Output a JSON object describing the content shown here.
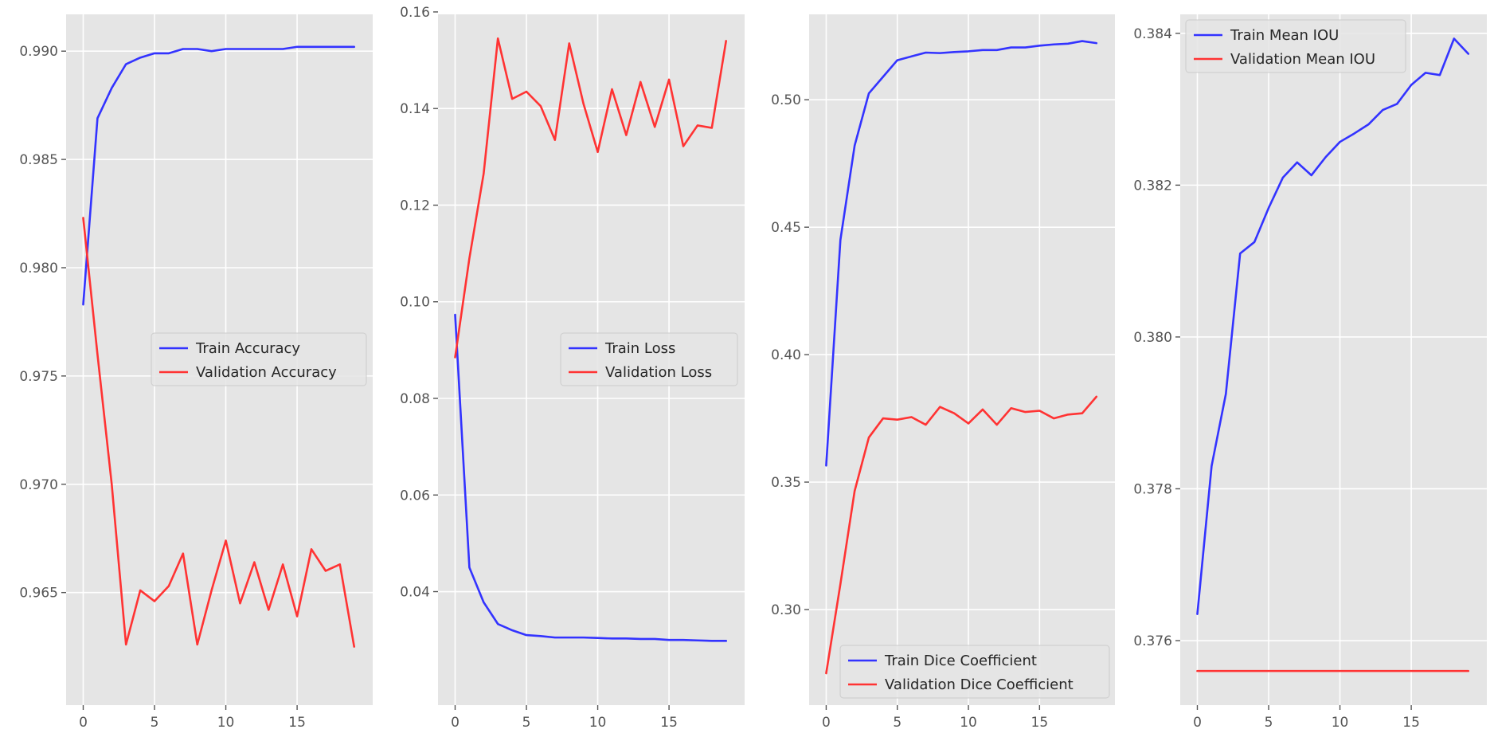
{
  "chart_data": [
    {
      "type": "line",
      "title": "",
      "xlabel": "",
      "ylabel": "",
      "x": [
        0,
        1,
        2,
        3,
        4,
        5,
        6,
        7,
        8,
        9,
        10,
        11,
        12,
        13,
        14,
        15,
        16,
        17,
        18,
        19
      ],
      "xlim": [
        -1.2,
        20.3
      ],
      "ylim": [
        0.9598,
        0.9917
      ],
      "xticks": [
        0,
        5,
        10,
        15
      ],
      "yticks": [
        0.965,
        0.97,
        0.975,
        0.98,
        0.985,
        0.99
      ],
      "ytick_labels": [
        "0.965",
        "0.970",
        "0.975",
        "0.980",
        "0.985",
        "0.990"
      ],
      "grid": true,
      "legend_position": "center-right",
      "series": [
        {
          "name": "Train Accuracy",
          "color": "#3333ff",
          "values": [
            0.9783,
            0.9869,
            0.9883,
            0.9894,
            0.9897,
            0.9899,
            0.9899,
            0.9901,
            0.9901,
            0.99,
            0.9901,
            0.9901,
            0.9901,
            0.9901,
            0.9901,
            0.9902,
            0.9902,
            0.9902,
            0.9902,
            0.9902
          ]
        },
        {
          "name": "Validation Accuracy",
          "color": "#ff3333",
          "values": [
            0.9823,
            0.976,
            0.97,
            0.9626,
            0.9651,
            0.9646,
            0.9653,
            0.9668,
            0.9626,
            0.9651,
            0.9674,
            0.9645,
            0.9664,
            0.9642,
            0.9663,
            0.9639,
            0.967,
            0.966,
            0.9663,
            0.9625
          ]
        }
      ]
    },
    {
      "type": "line",
      "title": "",
      "xlabel": "",
      "ylabel": "",
      "x": [
        0,
        1,
        2,
        3,
        4,
        5,
        6,
        7,
        8,
        9,
        10,
        11,
        12,
        13,
        14,
        15,
        16,
        17,
        18,
        19
      ],
      "xlim": [
        -1.2,
        20.3
      ],
      "ylim": [
        0.0165,
        0.1595
      ],
      "xticks": [
        0,
        5,
        10,
        15
      ],
      "yticks": [
        0.04,
        0.06,
        0.08,
        0.1,
        0.12,
        0.14,
        0.16
      ],
      "ytick_labels": [
        "0.04",
        "0.06",
        "0.08",
        "0.10",
        "0.12",
        "0.14",
        "0.16"
      ],
      "grid": true,
      "legend_position": "center-right",
      "series": [
        {
          "name": "Train Loss",
          "color": "#3333ff",
          "values": [
            0.0973,
            0.045,
            0.0378,
            0.0333,
            0.032,
            0.031,
            0.0308,
            0.0305,
            0.0305,
            0.0305,
            0.0304,
            0.0303,
            0.0303,
            0.0302,
            0.0302,
            0.03,
            0.03,
            0.0299,
            0.0298,
            0.0298
          ]
        },
        {
          "name": "Validation Loss",
          "color": "#ff3333",
          "values": [
            0.0885,
            0.109,
            0.1265,
            0.1545,
            0.142,
            0.1435,
            0.1405,
            0.1335,
            0.1535,
            0.141,
            0.131,
            0.144,
            0.1345,
            0.1455,
            0.1362,
            0.146,
            0.1322,
            0.1365,
            0.136,
            0.154
          ]
        }
      ]
    },
    {
      "type": "line",
      "title": "",
      "xlabel": "",
      "ylabel": "",
      "x": [
        0,
        1,
        2,
        3,
        4,
        5,
        6,
        7,
        8,
        9,
        10,
        11,
        12,
        13,
        14,
        15,
        16,
        17,
        18,
        19
      ],
      "xlim": [
        -1.2,
        20.3
      ],
      "ylim": [
        0.2625,
        0.5335
      ],
      "xticks": [
        0,
        5,
        10,
        15
      ],
      "yticks": [
        0.3,
        0.35,
        0.4,
        0.45,
        0.5
      ],
      "ytick_labels": [
        "0.30",
        "0.35",
        "0.40",
        "0.45",
        "0.50"
      ],
      "grid": true,
      "legend_position": "lower-right",
      "series": [
        {
          "name": "Train Dice Coefficient",
          "color": "#3333ff",
          "values": [
            0.3565,
            0.445,
            0.482,
            0.5025,
            0.509,
            0.5155,
            0.517,
            0.5185,
            0.5183,
            0.5187,
            0.519,
            0.5195,
            0.5195,
            0.5205,
            0.5205,
            0.5212,
            0.5217,
            0.522,
            0.523,
            0.5222
          ]
        },
        {
          "name": "Validation Dice Coefficient",
          "color": "#ff3333",
          "values": [
            0.275,
            0.31,
            0.3465,
            0.3675,
            0.375,
            0.3745,
            0.3755,
            0.3725,
            0.3795,
            0.377,
            0.373,
            0.3785,
            0.3725,
            0.379,
            0.3775,
            0.378,
            0.375,
            0.3765,
            0.377,
            0.3835
          ]
        }
      ]
    },
    {
      "type": "line",
      "title": "",
      "xlabel": "",
      "ylabel": "",
      "x": [
        0,
        1,
        2,
        3,
        4,
        5,
        6,
        7,
        8,
        9,
        10,
        11,
        12,
        13,
        14,
        15,
        16,
        17,
        18,
        19
      ],
      "xlim": [
        -1.2,
        20.3
      ],
      "ylim": [
        0.37515,
        0.38425
      ],
      "xticks": [
        0,
        5,
        10,
        15
      ],
      "yticks": [
        0.376,
        0.378,
        0.38,
        0.382,
        0.384
      ],
      "ytick_labels": [
        "0.376",
        "0.378",
        "0.380",
        "0.382",
        "0.384"
      ],
      "grid": true,
      "legend_position": "upper-left",
      "series": [
        {
          "name": "Train Mean IOU",
          "color": "#3333ff",
          "values": [
            0.37635,
            0.3783,
            0.37925,
            0.3811,
            0.38125,
            0.3817,
            0.3821,
            0.3823,
            0.38213,
            0.38237,
            0.38257,
            0.38268,
            0.3828,
            0.38299,
            0.38307,
            0.38332,
            0.38348,
            0.38345,
            0.38393,
            0.38373
          ]
        },
        {
          "name": "Validation Mean IOU",
          "color": "#ff3333",
          "values": [
            0.3756,
            0.3756,
            0.3756,
            0.3756,
            0.3756,
            0.3756,
            0.3756,
            0.3756,
            0.3756,
            0.3756,
            0.3756,
            0.3756,
            0.3756,
            0.3756,
            0.3756,
            0.3756,
            0.3756,
            0.3756,
            0.3756,
            0.3756
          ]
        }
      ]
    }
  ]
}
